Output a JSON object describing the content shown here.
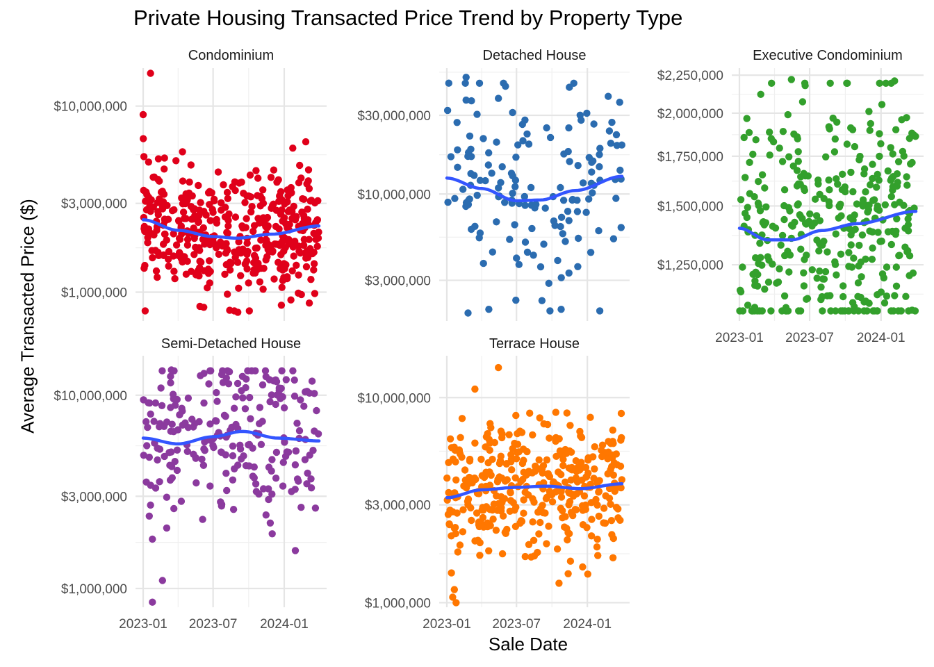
{
  "title": "Private Housing Transacted Price Trend by Property Type",
  "xlabel": "Sale Date",
  "ylabel": "Average Transacted Price ($)",
  "chart_data": {
    "type": "scatter",
    "y_scale": "log",
    "smoother": "loess",
    "smoother_color": "#3355ff",
    "grid": true,
    "x_range": [
      "2023-01-01",
      "2024-03-31"
    ],
    "x_ticks": [
      "2023-01",
      "2023-07",
      "2024-01"
    ],
    "panels": [
      {
        "name": "Condominium",
        "color": "#e0001a",
        "ylim": [
          700000,
          16000000
        ],
        "y_ticks": [
          1000000,
          3000000,
          10000000
        ],
        "y_tick_labels": [
          "$1,000,000",
          "$3,000,000",
          "$10,000,000"
        ],
        "trend": [
          [
            "2023-01-01",
            2450000
          ],
          [
            "2023-04-01",
            2150000
          ],
          [
            "2023-07-01",
            1990000
          ],
          [
            "2023-09-01",
            1950000
          ],
          [
            "2023-12-01",
            2050000
          ],
          [
            "2024-03-31",
            2270000
          ]
        ],
        "outliers": [
          [
            "2023-01-01",
            9000000
          ],
          [
            "2023-01-20",
            15000000
          ],
          [
            "2023-01-15",
            5000000
          ],
          [
            "2023-09-05",
            1050000
          ],
          [
            "2023-09-03",
            780000
          ],
          [
            "2023-10-20",
            4500000
          ],
          [
            "2024-02-10",
            4800000
          ],
          [
            "2024-03-28",
            3100000
          ]
        ]
      },
      {
        "name": "Detached House",
        "color": "#2b6cb0",
        "ylim": [
          1700000,
          58000000
        ],
        "y_ticks": [
          3000000,
          10000000,
          30000000
        ],
        "y_tick_labels": [
          "$3,000,000",
          "$10,000,000",
          "$30,000,000"
        ],
        "trend": [
          [
            "2023-01-01",
            12500000
          ],
          [
            "2023-04-01",
            10800000
          ],
          [
            "2023-07-01",
            9100000
          ],
          [
            "2023-09-01",
            9200000
          ],
          [
            "2023-12-01",
            10500000
          ],
          [
            "2024-03-31",
            12800000
          ]
        ],
        "outliers": [
          [
            "2023-01-06",
            47000000
          ],
          [
            "2023-02-20",
            51000000
          ],
          [
            "2023-05-15",
            38000000
          ],
          [
            "2024-03-25",
            36000000
          ],
          [
            "2023-02-25",
            1900000
          ],
          [
            "2023-04-20",
            2000000
          ],
          [
            "2023-10-25",
            2000000
          ]
        ]
      },
      {
        "name": "Executive Condominium",
        "color": "#33a02c",
        "ylim": [
          1050000,
          2300000
        ],
        "y_ticks": [
          1250000,
          1500000,
          1750000,
          2000000,
          2250000
        ],
        "y_tick_labels": [
          "$1,250,000",
          "$1,500,000",
          "$1,750,000",
          "$2,000,000",
          "$2,250,000"
        ],
        "trend": [
          [
            "2023-01-01",
            1400000
          ],
          [
            "2023-03-15",
            1350000
          ],
          [
            "2023-05-15",
            1350000
          ],
          [
            "2023-08-01",
            1390000
          ],
          [
            "2023-11-01",
            1420000
          ],
          [
            "2024-03-31",
            1475000
          ]
        ],
        "outliers": [
          [
            "2023-02-25",
            2120000
          ],
          [
            "2023-05-15",
            2220000
          ],
          [
            "2024-02-05",
            2210000
          ],
          [
            "2023-03-30",
            1830000
          ],
          [
            "2023-10-20",
            1900000
          ],
          [
            "2024-03-25",
            1870000
          ]
        ]
      },
      {
        "name": "Semi-Detached House",
        "color": "#8b3a9e",
        "ylim": [
          800000,
          16000000
        ],
        "y_ticks": [
          1000000,
          3000000,
          10000000
        ],
        "y_tick_labels": [
          "$1,000,000",
          "$3,000,000",
          "$10,000,000"
        ],
        "trend": [
          [
            "2023-01-01",
            6000000
          ],
          [
            "2023-04-01",
            5600000
          ],
          [
            "2023-07-01",
            6100000
          ],
          [
            "2023-09-15",
            6500000
          ],
          [
            "2023-12-15",
            6000000
          ],
          [
            "2024-03-31",
            5800000
          ]
        ],
        "outliers": [
          [
            "2023-01-20",
            2700000
          ],
          [
            "2023-01-25",
            1800000
          ],
          [
            "2023-02-20",
            1100000
          ],
          [
            "2023-01-25",
            850000
          ],
          [
            "2023-03-15",
            13500000
          ],
          [
            "2023-09-15",
            12500000
          ],
          [
            "2023-12-10",
            12000000
          ],
          [
            "2023-11-15",
            2400000
          ]
        ]
      },
      {
        "name": "Terrace House",
        "color": "#ff7700",
        "ylim": [
          950000,
          16000000
        ],
        "y_ticks": [
          1000000,
          3000000,
          10000000
        ],
        "y_tick_labels": [
          "$1,000,000",
          "$3,000,000",
          "$10,000,000"
        ],
        "trend": [
          [
            "2023-01-01",
            3250000
          ],
          [
            "2023-04-01",
            3550000
          ],
          [
            "2023-07-01",
            3650000
          ],
          [
            "2023-09-15",
            3700000
          ],
          [
            "2023-12-15",
            3600000
          ],
          [
            "2024-03-31",
            3800000
          ]
        ],
        "outliers": [
          [
            "2023-03-15",
            11000000
          ],
          [
            "2023-05-15",
            14000000
          ],
          [
            "2023-01-25",
            1000000
          ],
          [
            "2024-03-28",
            6200000
          ],
          [
            "2023-10-20",
            6300000
          ],
          [
            "2023-03-15",
            6000000
          ]
        ]
      }
    ]
  }
}
